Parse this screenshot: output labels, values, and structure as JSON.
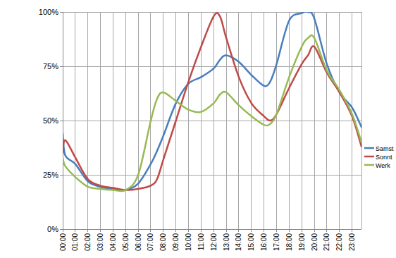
{
  "chart_data": {
    "type": "line",
    "x": [
      0,
      0.2,
      1,
      2,
      3,
      4,
      5,
      6,
      7,
      7.5,
      8,
      9,
      10,
      11,
      12,
      12.5,
      13,
      14,
      15,
      16,
      16.5,
      17,
      18,
      19,
      19.5,
      20,
      21,
      22,
      23,
      23.75
    ],
    "series": [
      {
        "name": "Samst",
        "color": "#4a7ebb",
        "values": [
          44,
          34,
          30,
          22,
          19.5,
          18.5,
          18,
          21,
          30,
          36,
          43,
          58,
          67,
          70,
          74,
          78,
          80,
          77,
          71,
          66,
          68,
          76,
          96,
          99.5,
          100,
          97,
          76,
          63,
          56,
          47
        ]
      },
      {
        "name": "Sonnt",
        "color": "#be4b48",
        "values": [
          35,
          41,
          33,
          23,
          20,
          19,
          18,
          18.5,
          20,
          23,
          32,
          50,
          68,
          84,
          98,
          98,
          88,
          70,
          58,
          52,
          50,
          53,
          65,
          76,
          80,
          84,
          72,
          63,
          52,
          38
        ]
      },
      {
        "name": "Werk",
        "color": "#98b954",
        "values": [
          33,
          29,
          24,
          19.5,
          18.5,
          18,
          18,
          25,
          50,
          60,
          63,
          59,
          55,
          54,
          58,
          62,
          63,
          57,
          52,
          48,
          48.5,
          53,
          70,
          84,
          88,
          88,
          73,
          64,
          53,
          40
        ]
      }
    ],
    "xlim": [
      0,
      23.75
    ],
    "xticks": [
      {
        "value": 0,
        "label": "00:00"
      },
      {
        "value": 1,
        "label": "01:00"
      },
      {
        "value": 2,
        "label": "02:00"
      },
      {
        "value": 3,
        "label": "03:00"
      },
      {
        "value": 4,
        "label": "04:00"
      },
      {
        "value": 5,
        "label": "05:00"
      },
      {
        "value": 6,
        "label": "06:00"
      },
      {
        "value": 7,
        "label": "07:00"
      },
      {
        "value": 8,
        "label": "08:00"
      },
      {
        "value": 9,
        "label": "09:00"
      },
      {
        "value": 10,
        "label": "10:00"
      },
      {
        "value": 11,
        "label": "11:00"
      },
      {
        "value": 12,
        "label": "12:00"
      },
      {
        "value": 13,
        "label": "13:00"
      },
      {
        "value": 14,
        "label": "14:00"
      },
      {
        "value": 15,
        "label": "15:00"
      },
      {
        "value": 16,
        "label": "16:00"
      },
      {
        "value": 17,
        "label": "17:00"
      },
      {
        "value": 18,
        "label": "18:00"
      },
      {
        "value": 19,
        "label": "19:00"
      },
      {
        "value": 20,
        "label": "20:00"
      },
      {
        "value": 21,
        "label": "21:00"
      },
      {
        "value": 22,
        "label": "22:00"
      },
      {
        "value": 23,
        "label": "23:00"
      }
    ],
    "ylim": [
      0,
      100
    ],
    "yticks": [
      {
        "value": 0,
        "label": "0%"
      },
      {
        "value": 25,
        "label": "25%"
      },
      {
        "value": 50,
        "label": "50%"
      },
      {
        "value": 75,
        "label": "75%"
      },
      {
        "value": 100,
        "label": "100%"
      }
    ],
    "grid": true,
    "legend": "right"
  }
}
